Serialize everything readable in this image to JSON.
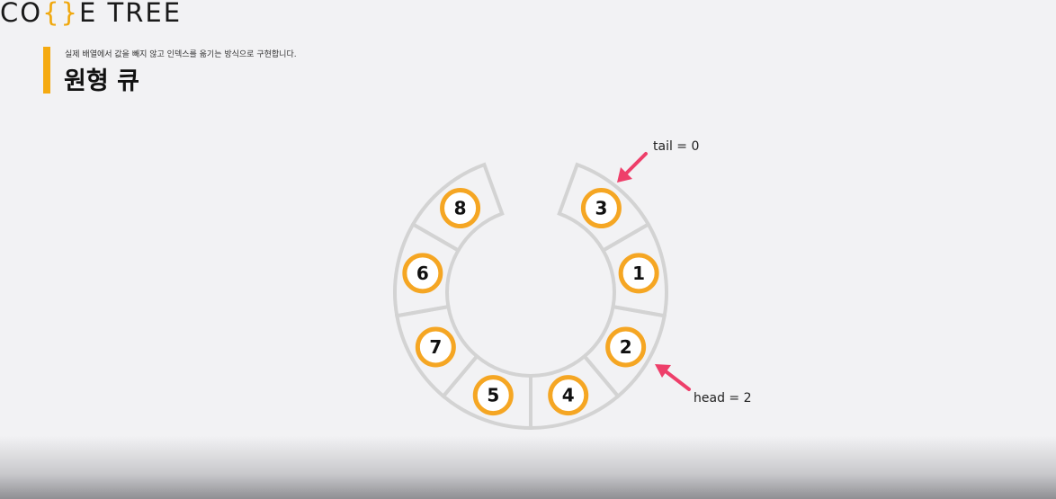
{
  "logo": {
    "part1": "CO",
    "part2": "{}",
    "part3": "E TREE"
  },
  "header": {
    "subtitle": "실제 배열에서 값을 빼지 않고 인덱스를 옮기는 방식으로 구현합니다.",
    "title": "원형 큐"
  },
  "diagram": {
    "ring_color": "#d3d3d3",
    "node_ring_color": "#f5a623",
    "arrow_color": "#ee3f6a",
    "nodes": [
      "8",
      "6",
      "7",
      "5",
      "4",
      "2",
      "1",
      "3"
    ],
    "tail_label": "tail = 0",
    "head_label": "head = 2"
  }
}
